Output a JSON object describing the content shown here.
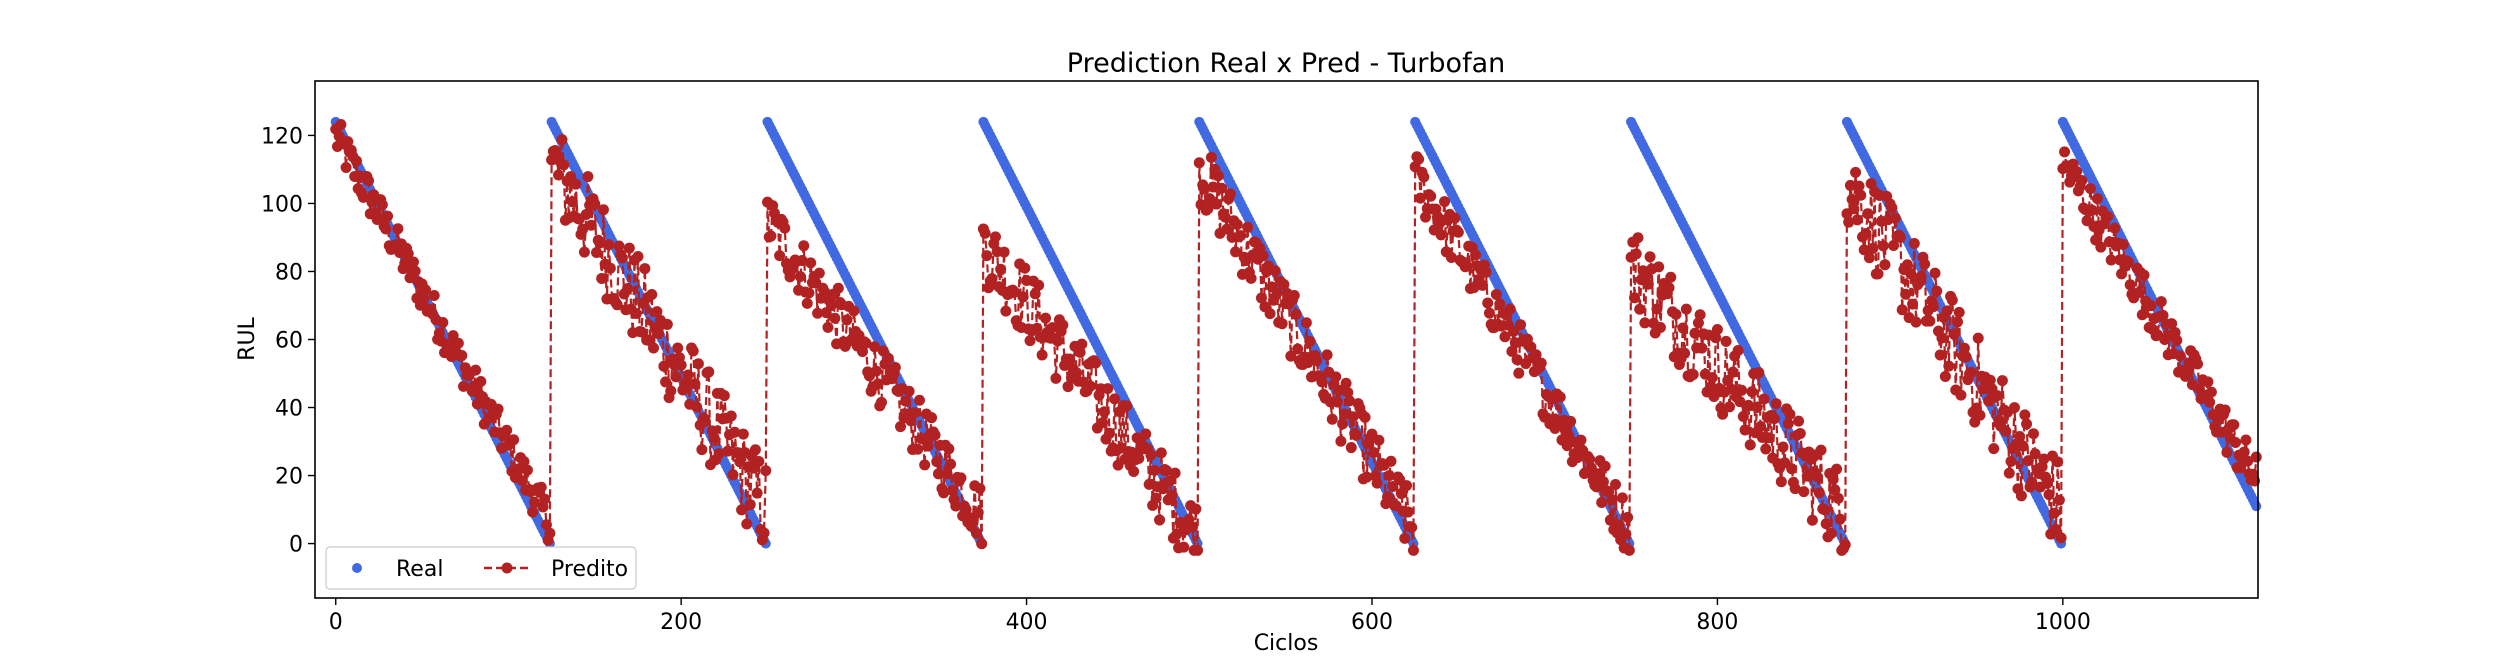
{
  "chart_data": {
    "type": "line",
    "title": "Prediction Real x Pred - Turbofan",
    "xlabel": "Ciclos",
    "ylabel": "RUL",
    "xlim": [
      -12,
      1113
    ],
    "ylim": [
      -16,
      136
    ],
    "xticks": [
      0,
      200,
      400,
      600,
      800,
      1000
    ],
    "yticks": [
      0,
      20,
      40,
      60,
      80,
      100,
      120
    ],
    "grid": false,
    "legend_position": "lower-left",
    "colors": {
      "real": "#4169e1",
      "pred": "#b22222",
      "axis": "#000000"
    },
    "series": [
      {
        "name": "Real",
        "style": "scatter",
        "segments": [
          {
            "x": [
              0,
              124
            ],
            "y": [
              124,
              0
            ]
          },
          {
            "x": [
              125,
              249
            ],
            "y": [
              124,
              0
            ]
          },
          {
            "x": [
              250,
              374
            ],
            "y": [
              124,
              0
            ]
          },
          {
            "x": [
              375,
              499
            ],
            "y": [
              124,
              0
            ]
          },
          {
            "x": [
              500,
              624
            ],
            "y": [
              124,
              0
            ]
          },
          {
            "x": [
              625,
              749
            ],
            "y": [
              124,
              0
            ]
          },
          {
            "x": [
              750,
              874
            ],
            "y": [
              124,
              0
            ]
          },
          {
            "x": [
              875,
              999
            ],
            "y": [
              124,
              0
            ]
          },
          {
            "x": [
              1000,
              1112
            ],
            "y": [
              124,
              11
            ]
          }
        ]
      },
      {
        "name": "Predito",
        "style": "dashed-line-with-markers",
        "segments": [
          {
            "x": [
              0,
              124
            ],
            "y_start": 120,
            "y_end": 6,
            "noise": 6
          },
          {
            "x": [
              125,
              249
            ],
            "y_start": 112,
            "y_end": 10,
            "noise": 14
          },
          {
            "x": [
              250,
              374
            ],
            "y_start": 95,
            "y_end": 8,
            "noise": 9
          },
          {
            "x": [
              375,
              499
            ],
            "y_start": 88,
            "y_end": 2,
            "noise": 11
          },
          {
            "x": [
              500,
              624
            ],
            "y_start": 110,
            "y_end": 4,
            "noise": 10
          },
          {
            "x": [
              625,
              749
            ],
            "y_start": 108,
            "y_end": 4,
            "noise": 8
          },
          {
            "x": [
              750,
              874
            ],
            "y_start": 82,
            "y_end": 8,
            "noise": 13
          },
          {
            "x": [
              875,
              999
            ],
            "y_start": 106,
            "y_end": 10,
            "noise": 14
          },
          {
            "x": [
              1000,
              1112
            ],
            "y_start": 112,
            "y_end": 19,
            "noise": 7
          }
        ]
      }
    ]
  }
}
